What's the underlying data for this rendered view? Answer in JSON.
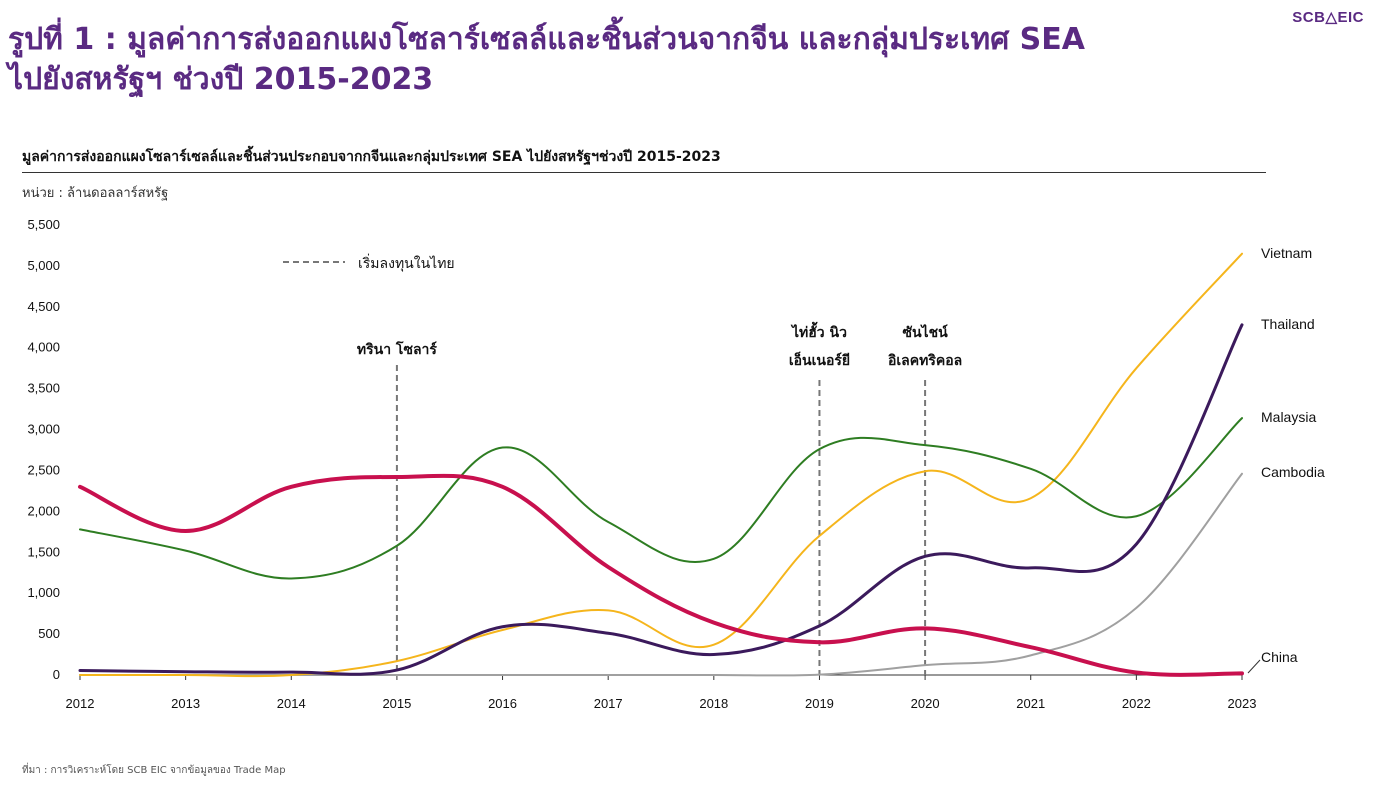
{
  "brand": "SCB△EIC",
  "header": {
    "title_line1": "รูปที่ 1 : มูลค่าการส่งออกแผงโซลาร์เซลล์และชิ้นส่วนจากจีน และกลุ่มประเทศ SEA",
    "title_line2": "ไปยังสหรัฐฯ ช่วงปี 2015-2023"
  },
  "footer": {
    "source": "ที่มา : การวิเคราะห์โดย SCB EIC จากข้อมูลของ Trade Map"
  },
  "colors": {
    "Vietnam": "#f5b51c",
    "Thailand": "#3b1a5c",
    "Malaysia": "#2e7d22",
    "Cambodia": "#a0a0a0",
    "China": "#c8104e",
    "axis": "#333333",
    "marker": "#777777"
  },
  "chart_data": {
    "type": "line",
    "title": "มูลค่าการส่งออกแผงโซลาร์เซลล์และชิ้นส่วนประกอบจากกจีนและกลุ่มประเทศ SEA ไปยังสหรัฐฯช่วงปี 2015-2023",
    "unit": "หน่วย : ล้านดอลลาร์สหรัฐ",
    "xlabel": "",
    "ylabel": "",
    "x": [
      2012,
      2013,
      2014,
      2015,
      2016,
      2017,
      2018,
      2019,
      2020,
      2021,
      2022,
      2023
    ],
    "ylim": [
      0,
      5500
    ],
    "yticks": [
      0,
      500,
      1000,
      1500,
      2000,
      2500,
      3000,
      3500,
      4000,
      4500,
      5000,
      5500
    ],
    "grid": false,
    "series": [
      {
        "name": "Vietnam",
        "values": [
          0,
          0,
          0,
          170,
          550,
          790,
          370,
          1700,
          2490,
          2160,
          3750,
          5150
        ]
      },
      {
        "name": "Thailand",
        "values": [
          55,
          40,
          35,
          60,
          590,
          510,
          250,
          600,
          1450,
          1310,
          1600,
          4280
        ]
      },
      {
        "name": "Malaysia",
        "values": [
          1780,
          1520,
          1180,
          1580,
          2780,
          1870,
          1420,
          2760,
          2810,
          2520,
          1940,
          3140
        ]
      },
      {
        "name": "Cambodia",
        "values": [
          0,
          0,
          0,
          0,
          0,
          0,
          0,
          5,
          120,
          240,
          820,
          2460
        ]
      },
      {
        "name": "China",
        "values": [
          2300,
          1760,
          2300,
          2420,
          2300,
          1320,
          640,
          400,
          570,
          340,
          30,
          20
        ]
      }
    ],
    "legend": {
      "marker_label": "เริ่มลงทุนในไทย"
    },
    "annotations": [
      {
        "year": 2015,
        "lines": [
          "ทรินา โซลาร์"
        ]
      },
      {
        "year": 2019,
        "lines": [
          "ไท่ฮั้ว นิว",
          "เอ็นเนอร์ยี"
        ]
      },
      {
        "year": 2020,
        "lines": [
          "ซันไชน์",
          "อิเลคทริคอล"
        ]
      }
    ]
  }
}
